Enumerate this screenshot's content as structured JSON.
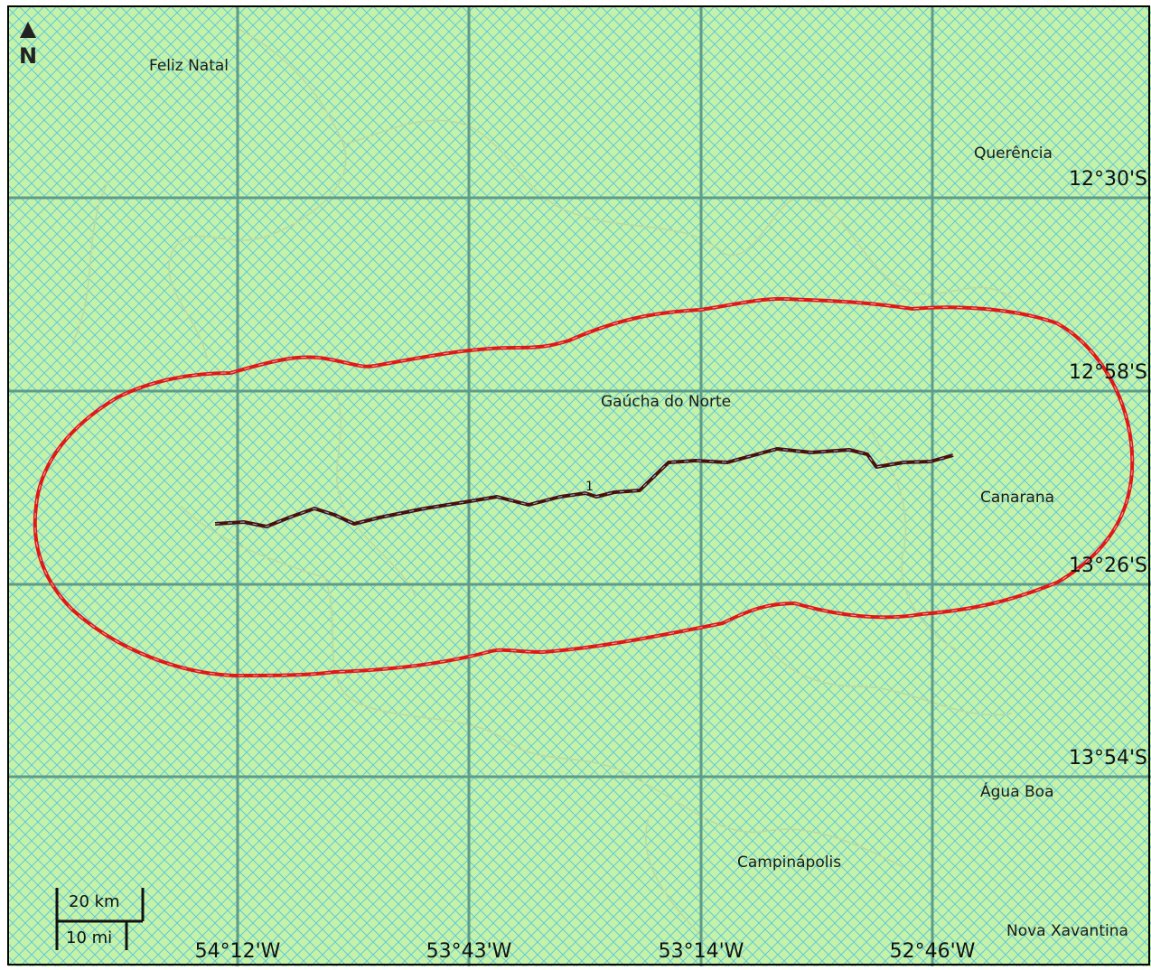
{
  "map": {
    "colors": {
      "land": "#c6f2a8",
      "hatch": "#5fc9dc",
      "graticule": "#5e9c8a",
      "buffer": "#e01818",
      "route": "#4a1010",
      "boundary": "#b9d9a3"
    },
    "north_arrow": {
      "label": "N"
    },
    "places": {
      "feliz_natal": "Feliz Natal",
      "querencia": "Querência",
      "gaucha_do_norte": "Gaúcha do Norte",
      "canarana": "Canarana",
      "agua_boa": "Água Boa",
      "campinapolis": "Campinápolis",
      "nova_xavantina": "Nova Xavantina"
    },
    "route_label": "1",
    "latitudes": [
      "12°30'S",
      "12°58'S",
      "13°26'S",
      "13°54'S"
    ],
    "longitudes": [
      "54°12'W",
      "53°43'W",
      "53°14'W",
      "52°46'W"
    ],
    "scale_bar": {
      "km": "20 km",
      "mi": "10 mi"
    }
  }
}
